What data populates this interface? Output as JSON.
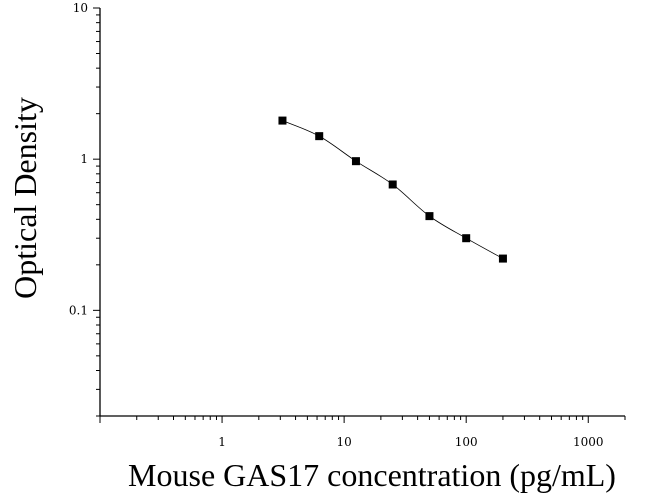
{
  "chart_data": {
    "type": "scatter",
    "title": "",
    "xlabel": "Mouse GAS17 concentration (pg/mL)",
    "ylabel": "Optical Density",
    "x_scale": "log",
    "y_scale": "log",
    "xlim": [
      0.1,
      2000
    ],
    "ylim": [
      0.02,
      10
    ],
    "x_ticks": [
      1,
      10,
      100,
      1000
    ],
    "x_tick_labels": [
      "1",
      "10",
      "100",
      "1000"
    ],
    "y_ticks": [
      0.1,
      1,
      10
    ],
    "y_tick_labels": [
      "0.1",
      "1",
      "10"
    ],
    "grid": false,
    "legend": "none",
    "series": [
      {
        "x": [
          3.125,
          6.25,
          12.5,
          25,
          50,
          100,
          200
        ],
        "y": [
          1.8,
          1.42,
          0.97,
          0.68,
          0.42,
          0.3,
          0.22
        ]
      }
    ],
    "fit_curve": true,
    "colors": {
      "marker": "#000000",
      "axis": "#000000",
      "curve": "#000000"
    }
  }
}
